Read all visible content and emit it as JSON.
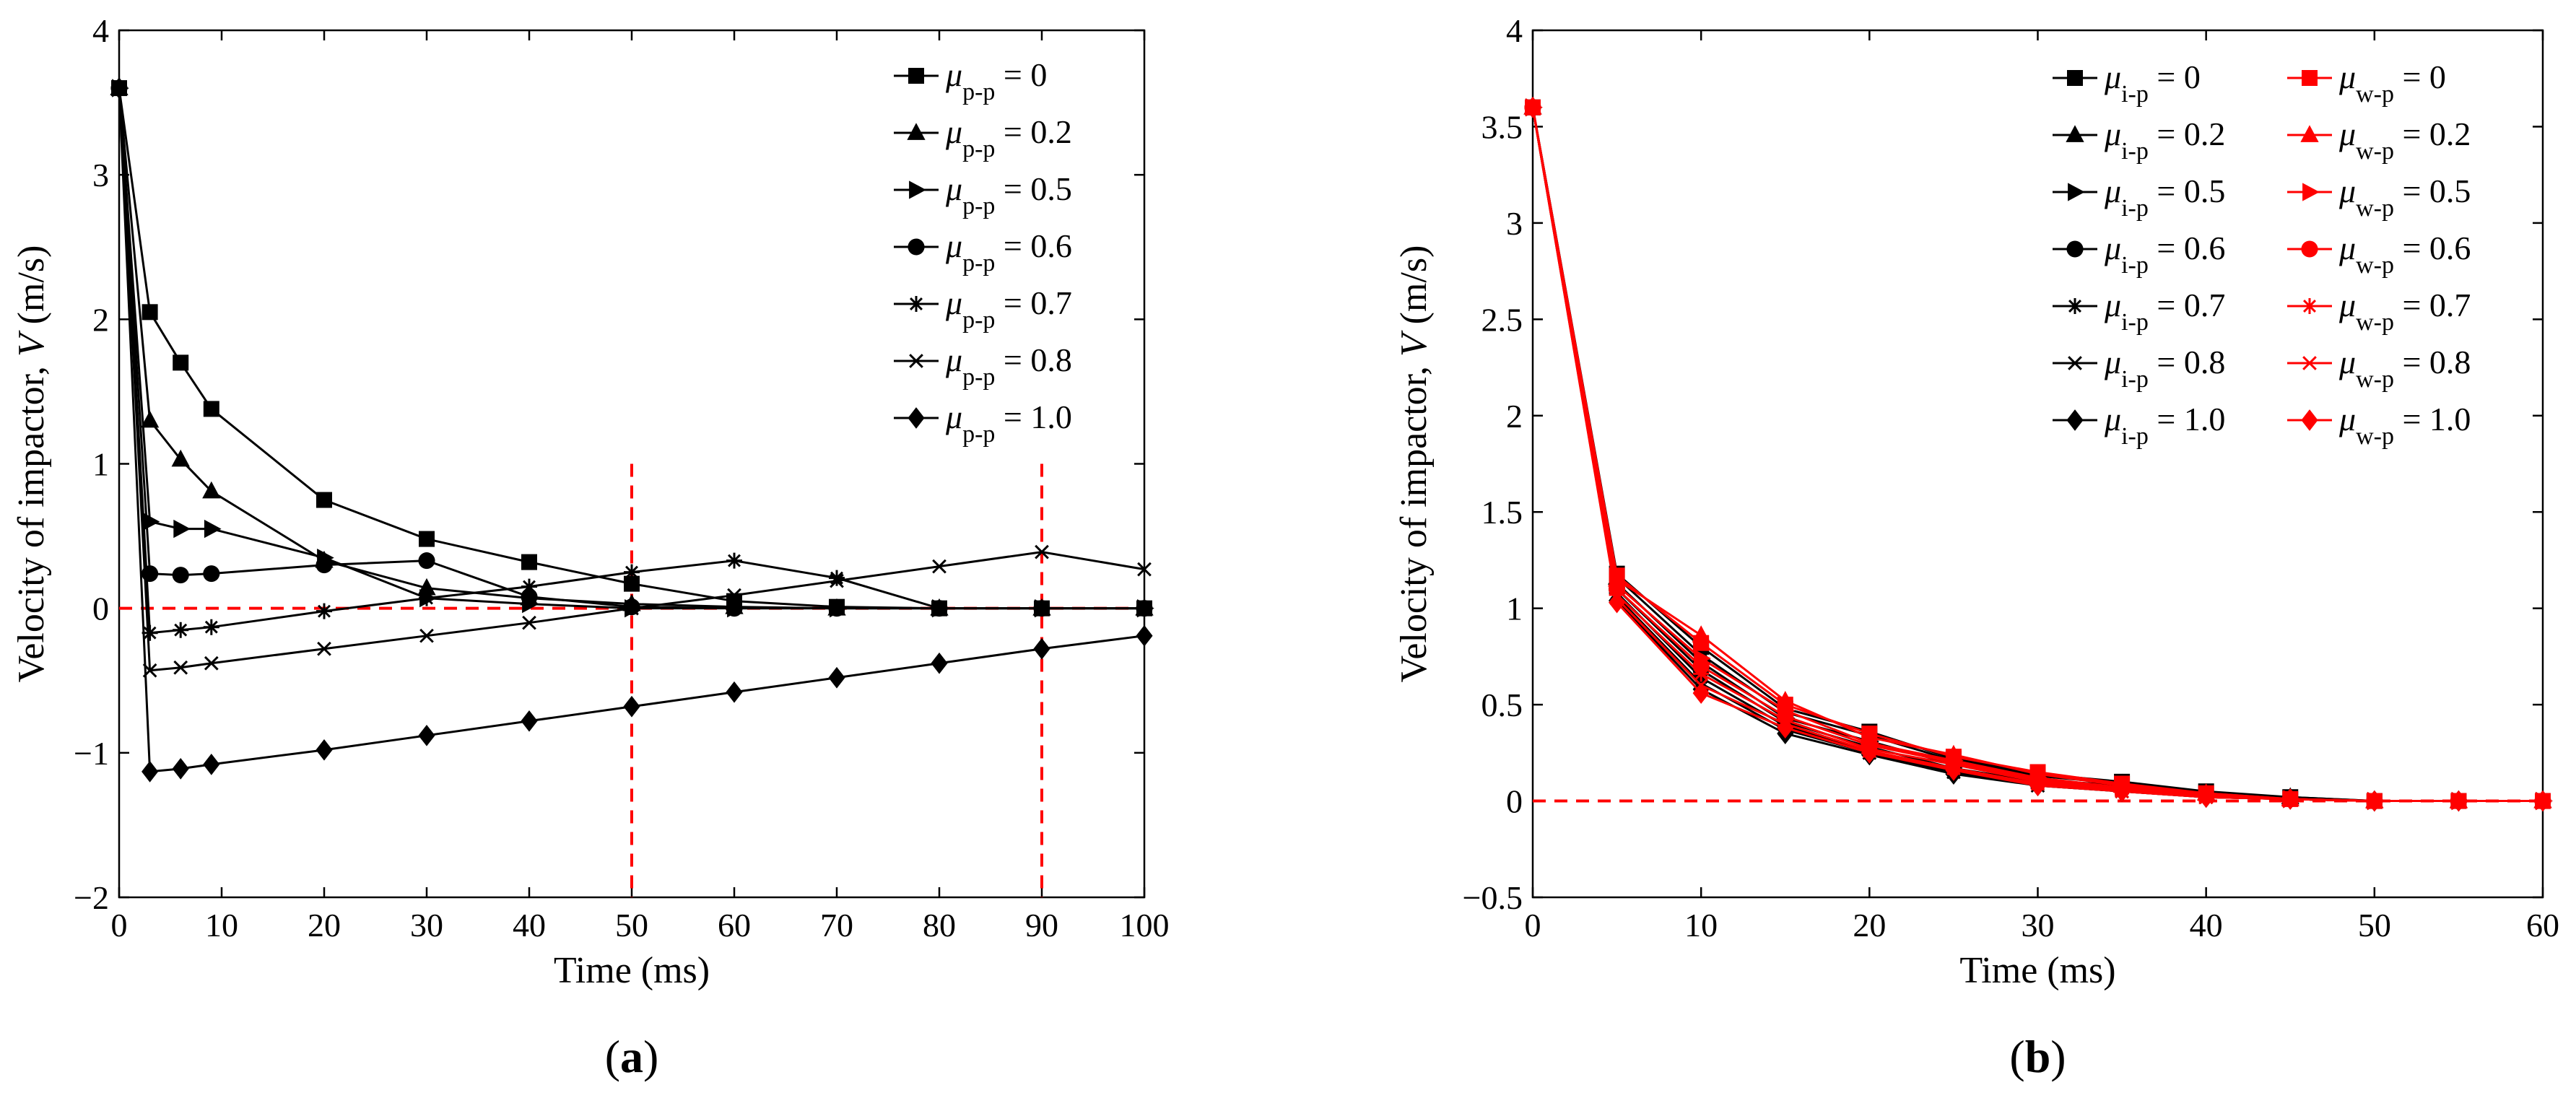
{
  "chart_data": [
    {
      "type": "line",
      "panel_label": "(a)",
      "xlabel": "Time (ms)",
      "ylabel_prefix": "Velocity of impactor, ",
      "ylabel_var": "V",
      "ylabel_suffix": " (m/s)",
      "xlim": [
        0,
        100
      ],
      "ylim": [
        -2,
        4
      ],
      "xticks": [
        0,
        10,
        20,
        30,
        40,
        50,
        60,
        70,
        80,
        90,
        100
      ],
      "yticks": [
        -2,
        -1,
        0,
        1,
        2,
        3,
        4
      ],
      "ytick_labels": [
        "−2",
        "−1",
        "0",
        "1",
        "2",
        "3",
        "4"
      ],
      "grid": false,
      "legend_position": "top-right",
      "reference_lines": {
        "color": "#ff0000",
        "horizontal_y": 0,
        "vertical_x": [
          50,
          90
        ]
      },
      "series": [
        {
          "name": "μp-p = 0",
          "name_mu": "μ",
          "name_sub": "p-p",
          "name_val": " = 0",
          "marker": "square",
          "color": "#000000",
          "x": [
            0,
            3,
            6,
            9,
            20,
            30,
            40,
            50,
            60,
            70,
            80,
            90,
            100
          ],
          "y": [
            3.6,
            2.05,
            1.7,
            1.38,
            0.75,
            0.48,
            0.32,
            0.17,
            0.05,
            0.01,
            0.0,
            0.0,
            0.0
          ]
        },
        {
          "name": "μp-p = 0.2",
          "name_mu": "μ",
          "name_sub": "p-p",
          "name_val": " = 0.2",
          "marker": "triangle-up",
          "color": "#000000",
          "x": [
            0,
            3,
            6,
            9,
            20,
            30,
            40,
            50,
            60,
            70,
            80,
            90,
            100
          ],
          "y": [
            3.6,
            1.3,
            1.03,
            0.81,
            0.33,
            0.14,
            0.07,
            0.03,
            0.01,
            0.0,
            0.0,
            0.0,
            0.0
          ]
        },
        {
          "name": "μp-p = 0.5",
          "name_mu": "μ",
          "name_sub": "p-p",
          "name_val": " = 0.5",
          "marker": "triangle-right",
          "color": "#000000",
          "x": [
            0,
            3,
            6,
            9,
            20,
            30,
            40,
            50,
            60,
            70,
            80,
            90,
            100
          ],
          "y": [
            3.6,
            0.6,
            0.55,
            0.55,
            0.35,
            0.07,
            0.03,
            0.0,
            0.0,
            0.0,
            0.0,
            0.0,
            0.0
          ]
        },
        {
          "name": "μp-p = 0.6",
          "name_mu": "μ",
          "name_sub": "p-p",
          "name_val": " = 0.6",
          "marker": "circle",
          "color": "#000000",
          "x": [
            0,
            3,
            6,
            9,
            20,
            30,
            40,
            50,
            60,
            70,
            80,
            90,
            100
          ],
          "y": [
            3.6,
            0.24,
            0.23,
            0.24,
            0.3,
            0.33,
            0.08,
            0.01,
            0.0,
            0.0,
            0.0,
            0.0,
            0.0
          ]
        },
        {
          "name": "μp-p = 0.7",
          "name_mu": "μ",
          "name_sub": "p-p",
          "name_val": " = 0.7",
          "marker": "asterisk",
          "color": "#000000",
          "x": [
            0,
            3,
            6,
            9,
            20,
            30,
            40,
            50,
            60,
            70,
            80,
            90,
            100
          ],
          "y": [
            3.6,
            -0.17,
            -0.15,
            -0.13,
            -0.02,
            0.07,
            0.15,
            0.25,
            0.33,
            0.21,
            0.0,
            0.0,
            0.0
          ]
        },
        {
          "name": "μp-p = 0.8",
          "name_mu": "μ",
          "name_sub": "p-p",
          "name_val": " = 0.8",
          "marker": "x",
          "color": "#000000",
          "x": [
            0,
            3,
            6,
            9,
            20,
            30,
            40,
            50,
            60,
            70,
            80,
            90,
            100
          ],
          "y": [
            3.6,
            -0.43,
            -0.41,
            -0.38,
            -0.28,
            -0.19,
            -0.1,
            0.0,
            0.09,
            0.19,
            0.29,
            0.39,
            0.27
          ]
        },
        {
          "name": "μp-p = 1.0",
          "name_mu": "μ",
          "name_sub": "p-p",
          "name_val": " = 1.0",
          "marker": "diamond",
          "color": "#000000",
          "x": [
            0,
            3,
            6,
            9,
            20,
            30,
            40,
            50,
            60,
            70,
            80,
            90,
            100
          ],
          "y": [
            3.6,
            -1.13,
            -1.11,
            -1.08,
            -0.98,
            -0.88,
            -0.78,
            -0.68,
            -0.58,
            -0.48,
            -0.38,
            -0.28,
            -0.19
          ]
        }
      ]
    },
    {
      "type": "line",
      "panel_label": "(b)",
      "xlabel": "Time (ms)",
      "ylabel_prefix": "Velocity of impactor, ",
      "ylabel_var": "V",
      "ylabel_suffix": " (m/s)",
      "xlim": [
        0,
        60
      ],
      "ylim": [
        -0.5,
        4
      ],
      "xticks": [
        0,
        10,
        20,
        30,
        40,
        50,
        60
      ],
      "yticks": [
        -0.5,
        0,
        0.5,
        1,
        1.5,
        2,
        2.5,
        3,
        3.5,
        4
      ],
      "ytick_labels": [
        "−0.5",
        "0",
        "0.5",
        "1",
        "1.5",
        "2",
        "2.5",
        "3",
        "3.5",
        "4"
      ],
      "grid": false,
      "legend_position": "top-right",
      "reference_lines": {
        "color": "#ff0000",
        "horizontal_y": 0
      },
      "series": [
        {
          "name": "μi-p = 0",
          "name_mu": "μ",
          "name_sub": "i-p",
          "name_val": " = 0",
          "marker": "square",
          "color": "#000000",
          "x": [
            0,
            5,
            10,
            15,
            20,
            25,
            30,
            35,
            40,
            45,
            50,
            55,
            60
          ],
          "y": [
            3.6,
            1.18,
            0.8,
            0.48,
            0.36,
            0.22,
            0.14,
            0.1,
            0.05,
            0.02,
            0.0,
            0.0,
            0.0
          ]
        },
        {
          "name": "μi-p = 0.2",
          "name_mu": "μ",
          "name_sub": "i-p",
          "name_val": " = 0.2",
          "marker": "triangle-up",
          "color": "#000000",
          "x": [
            0,
            5,
            10,
            15,
            20,
            25,
            30,
            35,
            40,
            45,
            50,
            55,
            60
          ],
          "y": [
            3.6,
            1.16,
            0.76,
            0.46,
            0.34,
            0.21,
            0.13,
            0.09,
            0.04,
            0.02,
            0.0,
            0.0,
            0.0
          ]
        },
        {
          "name": "μi-p = 0.5",
          "name_mu": "μ",
          "name_sub": "i-p",
          "name_val": " = 0.5",
          "marker": "triangle-right",
          "color": "#000000",
          "x": [
            0,
            5,
            10,
            15,
            20,
            25,
            30,
            35,
            40,
            45,
            50,
            55,
            60
          ],
          "y": [
            3.6,
            1.13,
            0.72,
            0.43,
            0.31,
            0.19,
            0.11,
            0.08,
            0.04,
            0.01,
            0.0,
            0.0,
            0.0
          ]
        },
        {
          "name": "μi-p = 0.6",
          "name_mu": "μ",
          "name_sub": "i-p",
          "name_val": " = 0.6",
          "marker": "circle",
          "color": "#000000",
          "x": [
            0,
            5,
            10,
            15,
            20,
            25,
            30,
            35,
            40,
            45,
            50,
            55,
            60
          ],
          "y": [
            3.6,
            1.1,
            0.68,
            0.41,
            0.28,
            0.17,
            0.1,
            0.07,
            0.03,
            0.01,
            0.0,
            0.0,
            0.0
          ]
        },
        {
          "name": "μi-p = 0.7",
          "name_mu": "μ",
          "name_sub": "i-p",
          "name_val": " = 0.7",
          "marker": "asterisk",
          "color": "#000000",
          "x": [
            0,
            5,
            10,
            15,
            20,
            25,
            30,
            35,
            40,
            45,
            50,
            55,
            60
          ],
          "y": [
            3.6,
            1.08,
            0.64,
            0.39,
            0.26,
            0.16,
            0.09,
            0.06,
            0.03,
            0.01,
            0.0,
            0.0,
            0.0
          ]
        },
        {
          "name": "μi-p = 0.8",
          "name_mu": "μ",
          "name_sub": "i-p",
          "name_val": " = 0.8",
          "marker": "x",
          "color": "#000000",
          "x": [
            0,
            5,
            10,
            15,
            20,
            25,
            30,
            35,
            40,
            45,
            50,
            55,
            60
          ],
          "y": [
            3.6,
            1.06,
            0.61,
            0.37,
            0.25,
            0.15,
            0.08,
            0.05,
            0.02,
            0.01,
            0.0,
            0.0,
            0.0
          ]
        },
        {
          "name": "μi-p = 1.0",
          "name_mu": "μ",
          "name_sub": "i-p",
          "name_val": " = 1.0",
          "marker": "diamond",
          "color": "#000000",
          "x": [
            0,
            5,
            10,
            15,
            20,
            25,
            30,
            35,
            40,
            45,
            50,
            55,
            60
          ],
          "y": [
            3.6,
            1.04,
            0.58,
            0.35,
            0.24,
            0.14,
            0.08,
            0.05,
            0.02,
            0.01,
            0.0,
            0.0,
            0.0
          ]
        },
        {
          "name": "μw-p = 0",
          "name_mu": "μ",
          "name_sub": "w-p",
          "name_val": " = 0",
          "marker": "square",
          "color": "#ff0000",
          "x": [
            0,
            5,
            10,
            15,
            20,
            25,
            30,
            35,
            40,
            45,
            50,
            55,
            60
          ],
          "y": [
            3.6,
            1.17,
            0.82,
            0.5,
            0.35,
            0.23,
            0.15,
            0.09,
            0.04,
            0.01,
            0.0,
            0.0,
            0.0
          ]
        },
        {
          "name": "μw-p = 0.2",
          "name_mu": "μ",
          "name_sub": "w-p",
          "name_val": " = 0.2",
          "marker": "triangle-up",
          "color": "#ff0000",
          "x": [
            0,
            5,
            10,
            15,
            20,
            25,
            30,
            35,
            40,
            45,
            50,
            55,
            60
          ],
          "y": [
            3.6,
            1.15,
            0.86,
            0.52,
            0.33,
            0.24,
            0.14,
            0.08,
            0.04,
            0.01,
            0.0,
            0.0,
            0.0
          ]
        },
        {
          "name": "μw-p = 0.5",
          "name_mu": "μ",
          "name_sub": "w-p",
          "name_val": " = 0.5",
          "marker": "triangle-right",
          "color": "#ff0000",
          "x": [
            0,
            5,
            10,
            15,
            20,
            25,
            30,
            35,
            40,
            45,
            50,
            55,
            60
          ],
          "y": [
            3.6,
            1.12,
            0.74,
            0.47,
            0.3,
            0.21,
            0.12,
            0.07,
            0.03,
            0.01,
            0.0,
            0.0,
            0.0
          ]
        },
        {
          "name": "μw-p = 0.6",
          "name_mu": "μ",
          "name_sub": "w-p",
          "name_val": " = 0.6",
          "marker": "circle",
          "color": "#ff0000",
          "x": [
            0,
            5,
            10,
            15,
            20,
            25,
            30,
            35,
            40,
            45,
            50,
            55,
            60
          ],
          "y": [
            3.6,
            1.1,
            0.7,
            0.44,
            0.29,
            0.2,
            0.11,
            0.06,
            0.03,
            0.01,
            0.0,
            0.0,
            0.0
          ]
        },
        {
          "name": "μw-p = 0.7",
          "name_mu": "μ",
          "name_sub": "w-p",
          "name_val": " = 0.7",
          "marker": "asterisk",
          "color": "#ff0000",
          "x": [
            0,
            5,
            10,
            15,
            20,
            25,
            30,
            35,
            40,
            45,
            50,
            55,
            60
          ],
          "y": [
            3.6,
            1.07,
            0.66,
            0.42,
            0.27,
            0.19,
            0.1,
            0.06,
            0.02,
            0.01,
            0.0,
            0.0,
            0.0
          ]
        },
        {
          "name": "μw-p = 0.8",
          "name_mu": "μ",
          "name_sub": "w-p",
          "name_val": " = 0.8",
          "marker": "x",
          "color": "#ff0000",
          "x": [
            0,
            5,
            10,
            15,
            20,
            25,
            30,
            35,
            40,
            45,
            50,
            55,
            60
          ],
          "y": [
            3.6,
            1.05,
            0.6,
            0.4,
            0.26,
            0.17,
            0.09,
            0.05,
            0.02,
            0.01,
            0.0,
            0.0,
            0.0
          ]
        },
        {
          "name": "μw-p = 1.0",
          "name_mu": "μ",
          "name_sub": "w-p",
          "name_val": " = 1.0",
          "marker": "diamond",
          "color": "#ff0000",
          "x": [
            0,
            5,
            10,
            15,
            20,
            25,
            30,
            35,
            40,
            45,
            50,
            55,
            60
          ],
          "y": [
            3.6,
            1.03,
            0.56,
            0.38,
            0.25,
            0.16,
            0.08,
            0.05,
            0.02,
            0.01,
            0.0,
            0.0,
            0.0
          ]
        }
      ]
    }
  ]
}
